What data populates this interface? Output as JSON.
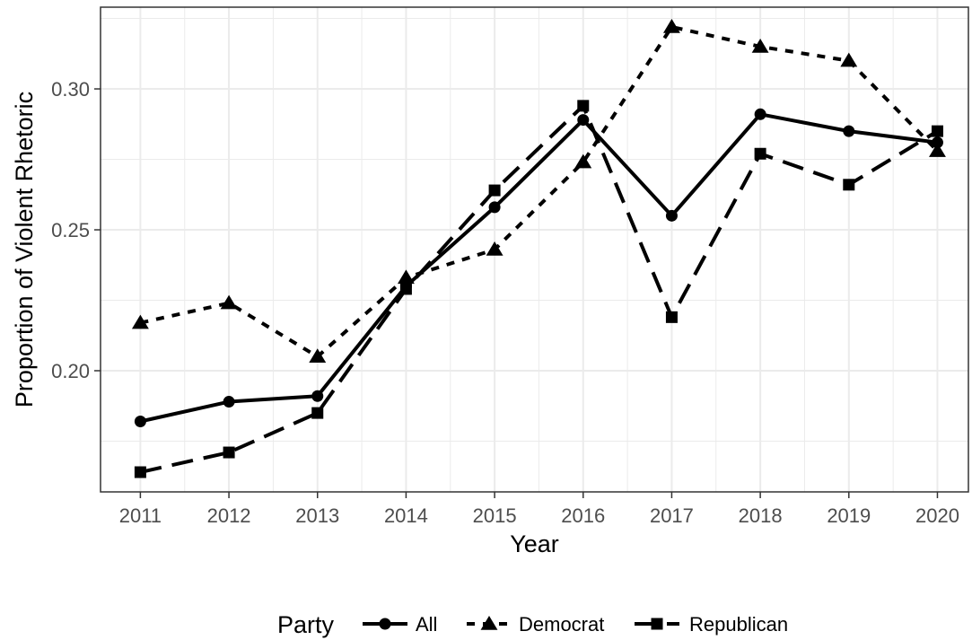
{
  "chart_data": {
    "type": "line",
    "title": "",
    "xlabel": "Year",
    "ylabel": "Proportion of Violent Rhetoric",
    "x": [
      2011,
      2012,
      2013,
      2014,
      2015,
      2016,
      2017,
      2018,
      2019,
      2020
    ],
    "x_tick_labels": [
      "2011",
      "2012",
      "2013",
      "2014",
      "2015",
      "2016",
      "2017",
      "2018",
      "2019",
      "2020"
    ],
    "y_ticks": [
      0.2,
      0.25,
      0.3
    ],
    "y_tick_labels": [
      "0.20",
      "0.25",
      "0.30"
    ],
    "ylim": [
      0.157,
      0.329
    ],
    "grid": true,
    "legend_title": "Party",
    "legend_position": "bottom",
    "series": [
      {
        "name": "All",
        "marker": "circle",
        "dash": "solid",
        "values": [
          0.182,
          0.189,
          0.191,
          0.23,
          0.258,
          0.289,
          0.255,
          0.291,
          0.285,
          0.281
        ]
      },
      {
        "name": "Democrat",
        "marker": "triangle",
        "dash": "short-dash",
        "values": [
          0.217,
          0.224,
          0.205,
          0.233,
          0.243,
          0.274,
          0.322,
          0.315,
          0.31,
          0.278
        ]
      },
      {
        "name": "Republican",
        "marker": "square",
        "dash": "long-dash",
        "values": [
          0.164,
          0.171,
          0.185,
          0.229,
          0.264,
          0.294,
          0.219,
          0.277,
          0.266,
          0.285
        ]
      }
    ]
  },
  "colors": {
    "line": "#000000",
    "grid": "#ebebeb",
    "panel_border": "#333333",
    "tick_text": "#4d4d4d"
  }
}
